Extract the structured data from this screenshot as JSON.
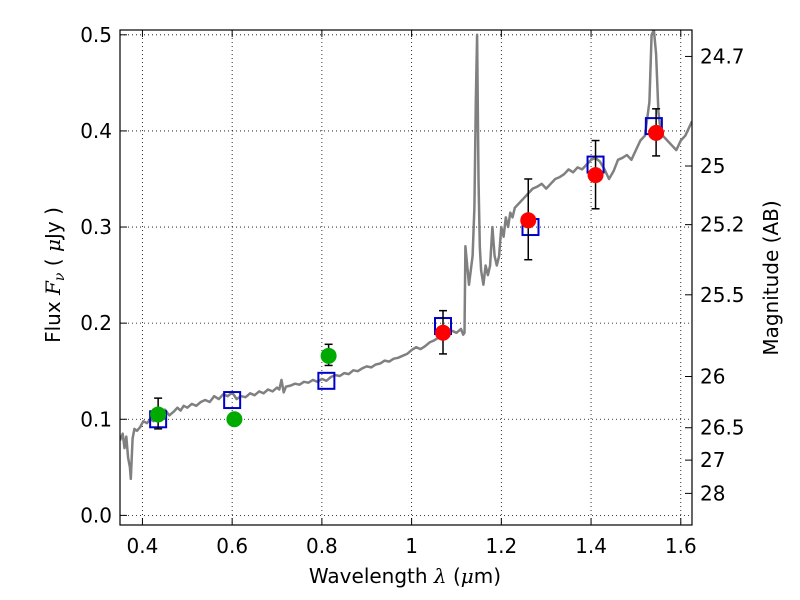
{
  "chart_data": {
    "type": "scatter",
    "xlabel": "Wavelength  λ (μm)",
    "ylabel": "Flux  Fν  ( μJy )",
    "ylabel_right": "Magnitude (AB)",
    "xlim": [
      0.35,
      1.625
    ],
    "ylim": [
      -0.01,
      0.505
    ],
    "grid": true,
    "x_ticks": [
      0.4,
      0.6,
      0.8,
      1.0,
      1.2,
      1.4,
      1.6
    ],
    "x_tick_labels": [
      "0.4",
      "0.6",
      "0.8",
      "1",
      "1.2",
      "1.4",
      "1.6"
    ],
    "y_ticks": [
      0.0,
      0.1,
      0.2,
      0.3,
      0.4,
      0.5
    ],
    "y_tick_labels": [
      "0.0",
      "0.1",
      "0.2",
      "0.3",
      "0.4",
      "0.5"
    ],
    "right_ticks": [
      {
        "label": "24.7",
        "flux": 0.4775
      },
      {
        "label": "25",
        "flux": 0.3635
      },
      {
        "label": "25.2",
        "flux": 0.3025
      },
      {
        "label": "25.5",
        "flux": 0.2295
      },
      {
        "label": "26",
        "flux": 0.1445
      },
      {
        "label": "26.5",
        "flux": 0.0912
      },
      {
        "label": "27",
        "flux": 0.0575
      },
      {
        "label": "28",
        "flux": 0.0229
      }
    ],
    "series": [
      {
        "kind": "line",
        "color": "#808080",
        "points": [
          [
            0.35,
            0.078
          ],
          [
            0.356,
            0.085
          ],
          [
            0.36,
            0.07
          ],
          [
            0.364,
            0.082
          ],
          [
            0.368,
            0.06
          ],
          [
            0.372,
            0.05
          ],
          [
            0.374,
            0.038
          ],
          [
            0.378,
            0.08
          ],
          [
            0.382,
            0.09
          ],
          [
            0.388,
            0.088
          ],
          [
            0.395,
            0.092
          ],
          [
            0.402,
            0.098
          ],
          [
            0.41,
            0.096
          ],
          [
            0.418,
            0.1
          ],
          [
            0.425,
            0.098
          ],
          [
            0.432,
            0.104
          ],
          [
            0.44,
            0.103
          ],
          [
            0.45,
            0.11
          ],
          [
            0.46,
            0.104
          ],
          [
            0.47,
            0.108
          ],
          [
            0.478,
            0.112
          ],
          [
            0.485,
            0.109
          ],
          [
            0.492,
            0.114
          ],
          [
            0.5,
            0.112
          ],
          [
            0.51,
            0.116
          ],
          [
            0.52,
            0.114
          ],
          [
            0.53,
            0.118
          ],
          [
            0.54,
            0.12
          ],
          [
            0.55,
            0.118
          ],
          [
            0.56,
            0.124
          ],
          [
            0.57,
            0.121
          ],
          [
            0.58,
            0.126
          ],
          [
            0.59,
            0.124
          ],
          [
            0.6,
            0.128
          ],
          [
            0.61,
            0.121
          ],
          [
            0.62,
            0.124
          ],
          [
            0.63,
            0.123
          ],
          [
            0.64,
            0.127
          ],
          [
            0.65,
            0.125
          ],
          [
            0.66,
            0.129
          ],
          [
            0.67,
            0.127
          ],
          [
            0.68,
            0.131
          ],
          [
            0.69,
            0.129
          ],
          [
            0.7,
            0.133
          ],
          [
            0.705,
            0.131
          ],
          [
            0.71,
            0.141
          ],
          [
            0.715,
            0.128
          ],
          [
            0.72,
            0.134
          ],
          [
            0.73,
            0.135
          ],
          [
            0.74,
            0.137
          ],
          [
            0.75,
            0.136
          ],
          [
            0.76,
            0.139
          ],
          [
            0.77,
            0.138
          ],
          [
            0.78,
            0.141
          ],
          [
            0.79,
            0.139
          ],
          [
            0.8,
            0.142
          ],
          [
            0.81,
            0.14
          ],
          [
            0.82,
            0.144
          ],
          [
            0.83,
            0.146
          ],
          [
            0.84,
            0.145
          ],
          [
            0.85,
            0.148
          ],
          [
            0.86,
            0.147
          ],
          [
            0.87,
            0.151
          ],
          [
            0.88,
            0.15
          ],
          [
            0.89,
            0.153
          ],
          [
            0.9,
            0.155
          ],
          [
            0.91,
            0.154
          ],
          [
            0.92,
            0.157
          ],
          [
            0.93,
            0.158
          ],
          [
            0.94,
            0.161
          ],
          [
            0.95,
            0.16
          ],
          [
            0.96,
            0.163
          ],
          [
            0.97,
            0.164
          ],
          [
            0.98,
            0.166
          ],
          [
            0.99,
            0.168
          ],
          [
            1.0,
            0.172
          ],
          [
            1.01,
            0.175
          ],
          [
            1.02,
            0.173
          ],
          [
            1.03,
            0.176
          ],
          [
            1.04,
            0.18
          ],
          [
            1.05,
            0.182
          ],
          [
            1.06,
            0.185
          ],
          [
            1.07,
            0.188
          ],
          [
            1.08,
            0.19
          ],
          [
            1.09,
            0.192
          ],
          [
            1.1,
            0.19
          ],
          [
            1.11,
            0.194
          ],
          [
            1.115,
            0.188
          ],
          [
            1.118,
            0.19
          ],
          [
            1.12,
            0.28
          ],
          [
            1.124,
            0.26
          ],
          [
            1.128,
            0.24
          ],
          [
            1.132,
            0.255
          ],
          [
            1.136,
            0.27
          ],
          [
            1.14,
            0.32
          ],
          [
            1.143,
            0.43
          ],
          [
            1.146,
            0.5
          ],
          [
            1.149,
            0.35
          ],
          [
            1.152,
            0.28
          ],
          [
            1.155,
            0.255
          ],
          [
            1.16,
            0.24
          ],
          [
            1.165,
            0.26
          ],
          [
            1.17,
            0.25
          ],
          [
            1.175,
            0.26
          ],
          [
            1.18,
            0.3
          ],
          [
            1.185,
            0.27
          ],
          [
            1.19,
            0.26
          ],
          [
            1.195,
            0.27
          ],
          [
            1.2,
            0.3
          ],
          [
            1.205,
            0.29
          ],
          [
            1.21,
            0.31
          ],
          [
            1.215,
            0.3
          ],
          [
            1.22,
            0.315
          ],
          [
            1.225,
            0.31
          ],
          [
            1.23,
            0.32
          ],
          [
            1.24,
            0.325
          ],
          [
            1.25,
            0.33
          ],
          [
            1.26,
            0.335
          ],
          [
            1.27,
            0.34
          ],
          [
            1.28,
            0.342
          ],
          [
            1.29,
            0.345
          ],
          [
            1.3,
            0.34
          ],
          [
            1.31,
            0.345
          ],
          [
            1.32,
            0.35
          ],
          [
            1.33,
            0.352
          ],
          [
            1.34,
            0.355
          ],
          [
            1.35,
            0.36
          ],
          [
            1.36,
            0.357
          ],
          [
            1.37,
            0.362
          ],
          [
            1.38,
            0.36
          ],
          [
            1.39,
            0.365
          ],
          [
            1.4,
            0.37
          ],
          [
            1.41,
            0.372
          ],
          [
            1.42,
            0.368
          ],
          [
            1.43,
            0.36
          ],
          [
            1.44,
            0.35
          ],
          [
            1.45,
            0.358
          ],
          [
            1.46,
            0.37
          ],
          [
            1.47,
            0.372
          ],
          [
            1.48,
            0.375
          ],
          [
            1.49,
            0.37
          ],
          [
            1.5,
            0.38
          ],
          [
            1.51,
            0.39
          ],
          [
            1.52,
            0.395
          ],
          [
            1.53,
            0.43
          ],
          [
            1.535,
            0.5
          ],
          [
            1.54,
            0.505
          ],
          [
            1.545,
            0.48
          ],
          [
            1.55,
            0.42
          ],
          [
            1.555,
            0.4
          ],
          [
            1.56,
            0.395
          ],
          [
            1.57,
            0.39
          ],
          [
            1.58,
            0.385
          ],
          [
            1.59,
            0.38
          ],
          [
            1.6,
            0.39
          ],
          [
            1.61,
            0.395
          ],
          [
            1.625,
            0.41
          ]
        ]
      },
      {
        "kind": "squares",
        "color": "#0000cc",
        "points": [
          [
            0.435,
            0.1
          ],
          [
            0.6,
            0.12
          ],
          [
            0.81,
            0.14
          ],
          [
            1.07,
            0.197
          ],
          [
            1.265,
            0.3
          ],
          [
            1.41,
            0.365
          ],
          [
            1.54,
            0.405
          ]
        ]
      },
      {
        "kind": "points",
        "color": "#00aa00",
        "points": [
          {
            "x": 0.435,
            "y": 0.105,
            "err": [
              0.09,
              0.122
            ]
          },
          {
            "x": 0.605,
            "y": 0.1,
            "err": null
          },
          {
            "x": 0.815,
            "y": 0.166,
            "err": [
              0.156,
              0.178
            ]
          }
        ]
      },
      {
        "kind": "points",
        "color": "#ff0000",
        "points": [
          {
            "x": 1.07,
            "y": 0.19,
            "err": [
              0.168,
              0.213
            ]
          },
          {
            "x": 1.26,
            "y": 0.307,
            "err": [
              0.266,
              0.35
            ]
          },
          {
            "x": 1.41,
            "y": 0.354,
            "err": [
              0.319,
              0.39
            ]
          },
          {
            "x": 1.545,
            "y": 0.398,
            "err": [
              0.374,
              0.423
            ]
          }
        ]
      }
    ]
  }
}
